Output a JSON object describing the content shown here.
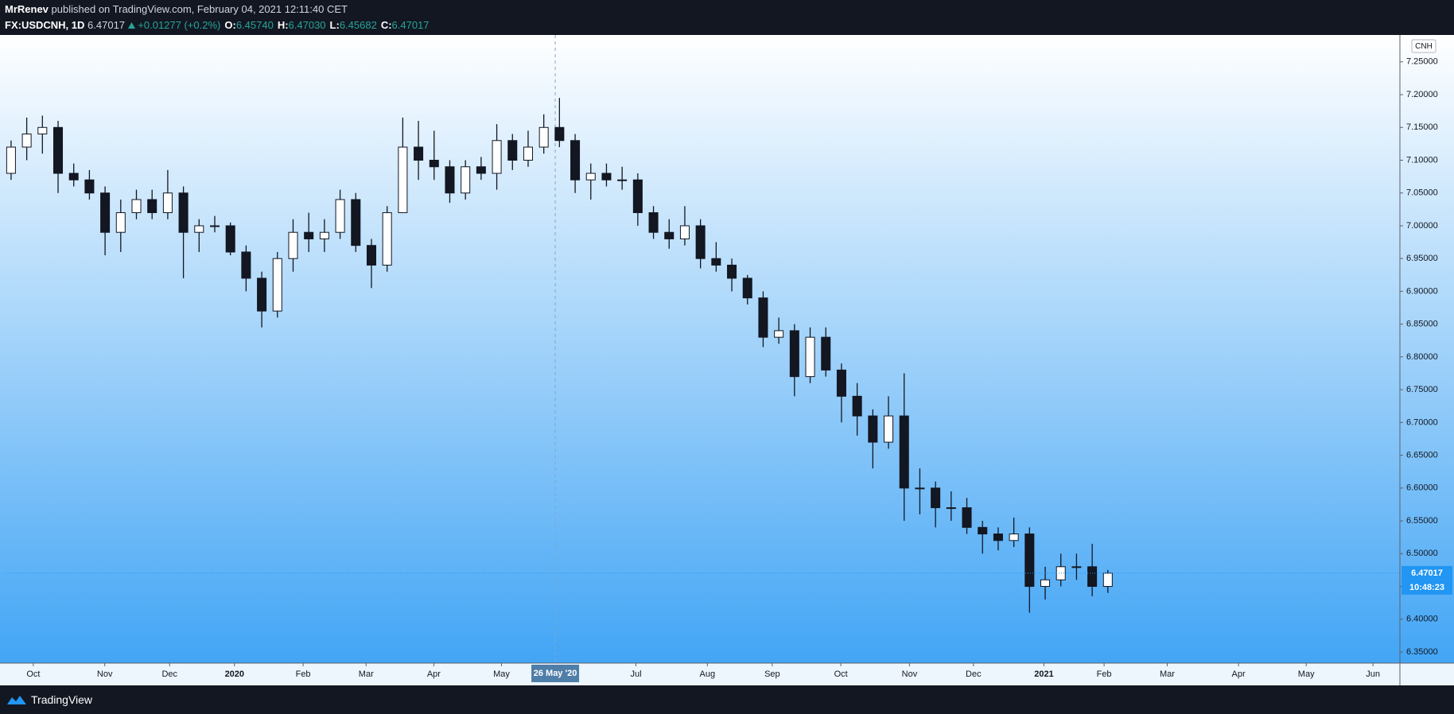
{
  "header": {
    "author": "MrRenev",
    "published": "published on TradingView.com, February 04, 2021 12:11:40 CET",
    "symbol": "FX:USDCNH, 1D",
    "last": "6.47017",
    "change": "+0.01277 (+0.2%)",
    "ohlc": [
      {
        "label": "O:",
        "value": "6.45740"
      },
      {
        "label": "H:",
        "value": "6.47030"
      },
      {
        "label": "L:",
        "value": "6.45682"
      },
      {
        "label": "C:",
        "value": "6.47017"
      }
    ]
  },
  "chart_data": {
    "type": "candlestick",
    "currency": "CNH",
    "open": [
      7.08,
      7.12,
      7.14,
      7.15,
      7.08,
      7.07,
      7.05,
      6.99,
      7.02,
      7.04,
      7.02,
      7.05,
      6.99,
      7.0,
      7.0,
      6.96,
      6.92,
      6.87,
      6.95,
      6.99,
      6.98,
      6.99,
      7.04,
      6.97,
      6.94,
      7.02,
      7.12,
      7.1,
      7.09,
      7.05,
      7.09,
      7.08,
      7.13,
      7.1,
      7.12,
      7.15,
      7.13,
      7.07,
      7.08,
      7.07,
      7.07,
      7.02,
      6.99,
      6.98,
      7.0,
      6.95,
      6.94,
      6.92,
      6.89,
      6.83,
      6.84,
      6.77,
      6.83,
      6.78,
      6.74,
      6.71,
      6.67,
      6.71,
      6.6,
      6.6,
      6.57,
      6.57,
      6.54,
      6.53,
      6.52,
      6.53,
      6.45,
      6.46,
      6.48,
      6.48,
      6.45
    ],
    "high": [
      7.13,
      7.165,
      7.168,
      7.16,
      7.095,
      7.085,
      7.06,
      7.04,
      7.055,
      7.055,
      7.085,
      7.06,
      7.01,
      7.015,
      7.005,
      6.97,
      6.93,
      6.96,
      7.01,
      7.02,
      7.01,
      7.055,
      7.05,
      6.98,
      7.03,
      7.165,
      7.16,
      7.145,
      7.1,
      7.1,
      7.105,
      7.155,
      7.14,
      7.145,
      7.17,
      7.195,
      7.14,
      7.095,
      7.095,
      7.09,
      7.08,
      7.03,
      7.01,
      7.03,
      7.01,
      6.975,
      6.95,
      6.925,
      6.9,
      6.86,
      6.85,
      6.845,
      6.845,
      6.79,
      6.76,
      6.72,
      6.74,
      6.775,
      6.63,
      6.61,
      6.595,
      6.585,
      6.55,
      6.54,
      6.555,
      6.54,
      6.48,
      6.5,
      6.5,
      6.515,
      6.475
    ],
    "low": [
      7.07,
      7.1,
      7.11,
      7.05,
      7.06,
      7.04,
      6.955,
      6.96,
      7.01,
      7.01,
      7.01,
      6.92,
      6.96,
      6.99,
      6.955,
      6.9,
      6.845,
      6.86,
      6.93,
      6.96,
      6.96,
      6.98,
      6.96,
      6.905,
      6.93,
      7.02,
      7.07,
      7.07,
      7.035,
      7.04,
      7.07,
      7.055,
      7.085,
      7.09,
      7.11,
      7.12,
      7.05,
      7.04,
      7.06,
      7.055,
      7.0,
      6.98,
      6.965,
      6.97,
      6.935,
      6.93,
      6.9,
      6.88,
      6.815,
      6.82,
      6.74,
      6.76,
      6.77,
      6.7,
      6.68,
      6.63,
      6.66,
      6.55,
      6.56,
      6.54,
      6.55,
      6.53,
      6.5,
      6.505,
      6.51,
      6.41,
      6.43,
      6.45,
      6.46,
      6.435,
      6.44
    ],
    "close": [
      7.12,
      7.14,
      7.15,
      7.08,
      7.07,
      7.05,
      6.99,
      7.02,
      7.04,
      7.02,
      7.05,
      6.99,
      7.0,
      7.0,
      6.96,
      6.92,
      6.87,
      6.95,
      6.99,
      6.98,
      6.99,
      7.04,
      6.97,
      6.94,
      7.02,
      7.12,
      7.1,
      7.09,
      7.05,
      7.09,
      7.08,
      7.13,
      7.1,
      7.12,
      7.15,
      7.13,
      7.07,
      7.08,
      7.07,
      7.07,
      7.02,
      6.99,
      6.98,
      7.0,
      6.95,
      6.94,
      6.92,
      6.89,
      6.83,
      6.84,
      6.77,
      6.83,
      6.78,
      6.74,
      6.71,
      6.67,
      6.71,
      6.6,
      6.6,
      6.57,
      6.57,
      6.54,
      6.53,
      6.52,
      6.53,
      6.45,
      6.46,
      6.48,
      6.48,
      6.45,
      6.47017
    ],
    "color": "#131722",
    "xlim": [
      -0.3,
      88.64
    ],
    "xticks": [
      {
        "value": 1.42,
        "label": "Oct"
      },
      {
        "value": 5.98,
        "label": "Nov"
      },
      {
        "value": 10.12,
        "label": "Dec"
      },
      {
        "value": 14.26,
        "label": "2020"
      },
      {
        "value": 18.64,
        "label": "Feb"
      },
      {
        "value": 22.66,
        "label": "Mar"
      },
      {
        "value": 26.98,
        "label": "Apr"
      },
      {
        "value": 31.3,
        "label": "May"
      },
      {
        "value": 39.88,
        "label": "Jul"
      },
      {
        "value": 44.44,
        "label": "Aug"
      },
      {
        "value": 48.58,
        "label": "Sep"
      },
      {
        "value": 52.96,
        "label": "Oct"
      },
      {
        "value": 57.34,
        "label": "Nov"
      },
      {
        "value": 61.42,
        "label": "Dec"
      },
      {
        "value": 65.92,
        "label": "2021"
      },
      {
        "value": 69.76,
        "label": "Feb"
      },
      {
        "value": 73.79,
        "label": "Mar"
      },
      {
        "value": 78.34,
        "label": "Apr"
      },
      {
        "value": 82.66,
        "label": "May"
      },
      {
        "value": 86.92,
        "label": "Jun"
      }
    ],
    "ylim": [
      6.333,
      7.291
    ],
    "yticks": [
      {
        "value": 6.35,
        "label": "6.35000"
      },
      {
        "value": 6.4,
        "label": "6.40000"
      },
      {
        "value": 6.45,
        "label": "6.45000"
      },
      {
        "value": 6.5,
        "label": "6.50000"
      },
      {
        "value": 6.55,
        "label": "6.55000"
      },
      {
        "value": 6.6,
        "label": "6.60000"
      },
      {
        "value": 6.65,
        "label": "6.65000"
      },
      {
        "value": 6.7,
        "label": "6.70000"
      },
      {
        "value": 6.75,
        "label": "6.75000"
      },
      {
        "value": 6.8,
        "label": "6.80000"
      },
      {
        "value": 6.85,
        "label": "6.85000"
      },
      {
        "value": 6.9,
        "label": "6.90000"
      },
      {
        "value": 6.95,
        "label": "6.95000"
      },
      {
        "value": 7.0,
        "label": "7.00000"
      },
      {
        "value": 7.05,
        "label": "7.05000"
      },
      {
        "value": 7.1,
        "label": "7.10000"
      },
      {
        "value": 7.15,
        "label": "7.15000"
      },
      {
        "value": 7.2,
        "label": "7.20000"
      },
      {
        "value": 7.25,
        "label": "7.25000"
      }
    ],
    "grid": false,
    "last_price": {
      "value": 6.47017,
      "label": "6.47017",
      "countdown": "10:48:23",
      "color": "#2196f3"
    },
    "crosshair": {
      "x": 34.73,
      "label": "26 May '20"
    }
  },
  "footer": {
    "brand": "TradingView"
  }
}
